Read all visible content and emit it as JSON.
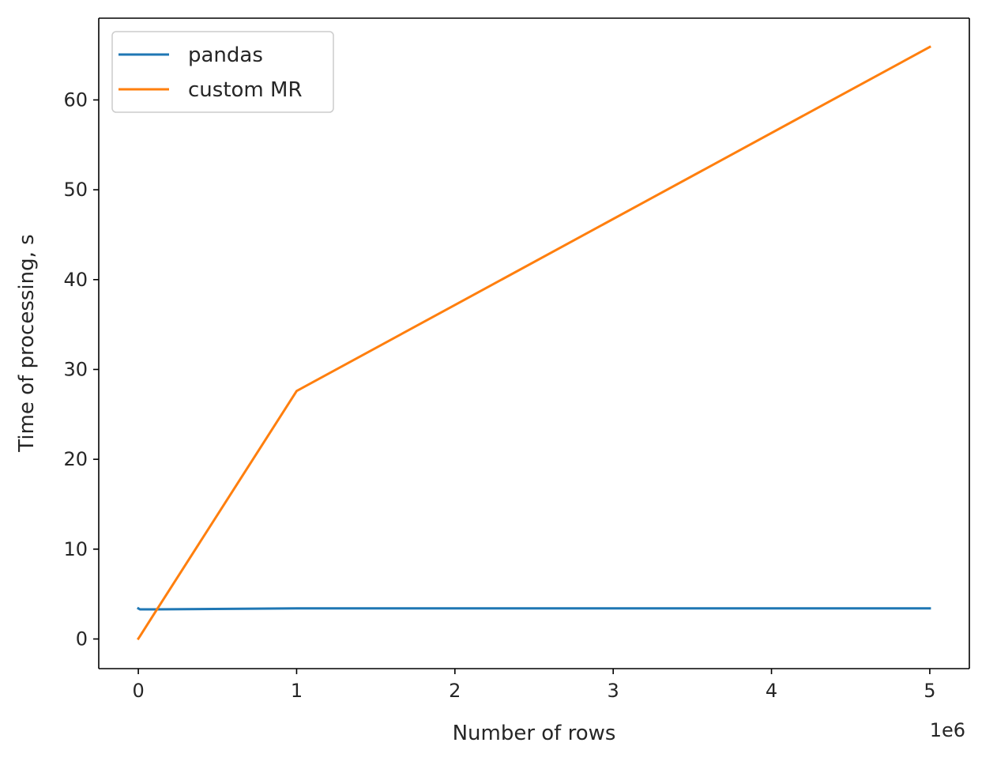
{
  "chart_data": {
    "type": "line",
    "title": "",
    "xlabel": "Number of rows",
    "ylabel": "Time of processing, s",
    "x_offset_label": "1e6",
    "xlim": [
      -250000,
      5250000
    ],
    "ylim": [
      -3.3,
      69.1
    ],
    "x_ticks": [
      0,
      1000000,
      2000000,
      3000000,
      4000000,
      5000000
    ],
    "x_tick_labels": [
      "0",
      "1",
      "2",
      "3",
      "4",
      "5"
    ],
    "y_ticks": [
      0,
      10,
      20,
      30,
      40,
      50,
      60
    ],
    "y_tick_labels": [
      "0",
      "10",
      "20",
      "30",
      "40",
      "50",
      "60"
    ],
    "grid": false,
    "legend_position": "top-left",
    "series": [
      {
        "name": "pandas",
        "color": "#1f77b4",
        "x": [
          0,
          10000,
          100000,
          1000000,
          5000000
        ],
        "y": [
          3.4,
          3.3,
          3.3,
          3.4,
          3.4
        ]
      },
      {
        "name": "custom MR",
        "color": "#ff7f0e",
        "x": [
          0,
          10000,
          100000,
          1000000,
          5000000
        ],
        "y": [
          0.03,
          0.3,
          2.8,
          27.6,
          65.9
        ]
      }
    ]
  }
}
